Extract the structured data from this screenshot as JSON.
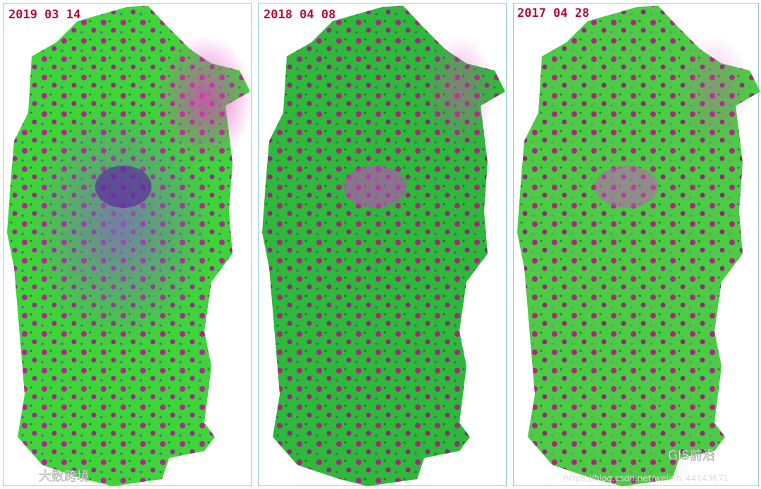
{
  "panels": [
    {
      "label": "2019 03 14"
    },
    {
      "label": "2018 04 08"
    },
    {
      "label": "2017 04 28"
    }
  ],
  "watermarks": {
    "left": "大数跨境",
    "right": "GIS前沿",
    "url": "https://blog.csdn.net/weixin_44143671"
  }
}
